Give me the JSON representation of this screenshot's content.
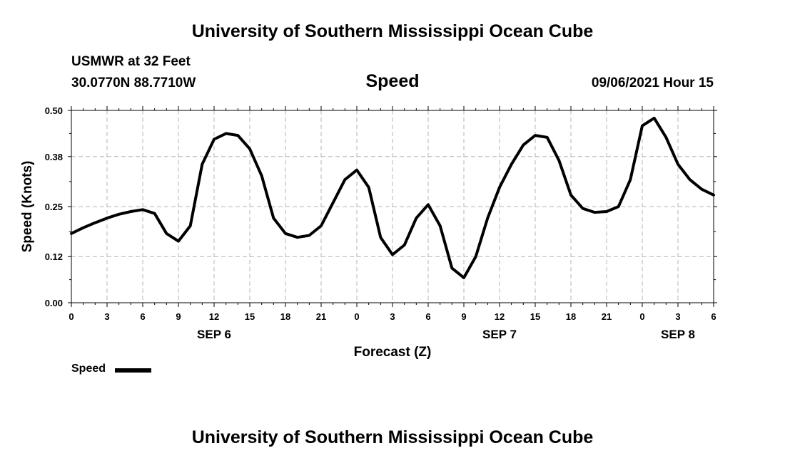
{
  "header": {
    "title": "University of Southern Mississippi Ocean Cube",
    "station": "USMWR at 32 Feet",
    "coords": "30.0770N  88.7710W",
    "variable": "Speed",
    "timestamp": "09/06/2021 Hour 15"
  },
  "footer": {
    "title": "University of Southern Mississippi Ocean Cube"
  },
  "chart_data": {
    "type": "line",
    "xlabel": "Forecast (Z)",
    "ylabel": "Speed (Knots)",
    "ylim": [
      0,
      0.5
    ],
    "yticks": [
      "0.00",
      "0.12",
      "0.25",
      "0.38",
      "0.50"
    ],
    "xlim": [
      0,
      54
    ],
    "xticks": [
      "0",
      "3",
      "6",
      "9",
      "12",
      "15",
      "18",
      "21",
      "0",
      "3",
      "6",
      "9",
      "12",
      "15",
      "18",
      "21",
      "0",
      "3",
      "6"
    ],
    "day_labels": [
      {
        "text": "SEP 6",
        "hour": 12
      },
      {
        "text": "SEP 7",
        "hour": 36
      },
      {
        "text": "SEP 8",
        "hour": 51
      }
    ],
    "grid": true,
    "legend": "bottom-left",
    "series": [
      {
        "name": "Speed",
        "color": "#000000",
        "x": [
          0,
          1,
          2,
          3,
          4,
          5,
          6,
          7,
          8,
          9,
          10,
          11,
          12,
          13,
          14,
          15,
          16,
          17,
          18,
          19,
          20,
          21,
          22,
          23,
          24,
          25,
          26,
          27,
          28,
          29,
          30,
          31,
          32,
          33,
          34,
          35,
          36,
          37,
          38,
          39,
          40,
          41,
          42,
          43,
          44,
          45,
          46,
          47,
          48,
          49,
          50,
          51,
          52,
          53,
          54
        ],
        "values": [
          0.18,
          0.195,
          0.208,
          0.22,
          0.23,
          0.237,
          0.242,
          0.232,
          0.18,
          0.16,
          0.2,
          0.36,
          0.425,
          0.44,
          0.435,
          0.4,
          0.33,
          0.22,
          0.18,
          0.17,
          0.175,
          0.2,
          0.26,
          0.32,
          0.345,
          0.3,
          0.17,
          0.125,
          0.15,
          0.22,
          0.255,
          0.2,
          0.09,
          0.065,
          0.12,
          0.22,
          0.3,
          0.36,
          0.41,
          0.435,
          0.43,
          0.37,
          0.28,
          0.245,
          0.235,
          0.237,
          0.25,
          0.32,
          0.46,
          0.48,
          0.43,
          0.36,
          0.32,
          0.295,
          0.28
        ]
      }
    ]
  }
}
